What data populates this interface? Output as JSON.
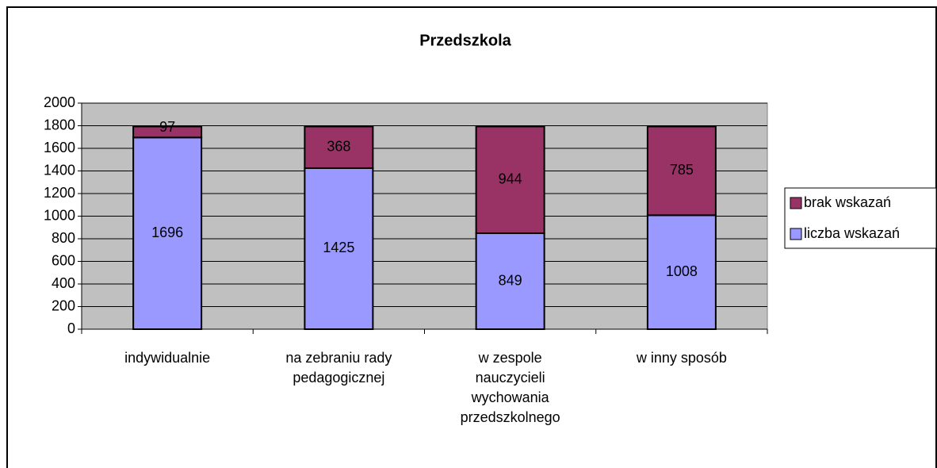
{
  "chart_data": {
    "type": "stacked_bar",
    "title": "Przedszkola",
    "categories": [
      [
        "indywidualnie"
      ],
      [
        "na zebraniu rady",
        "pedagogicznej"
      ],
      [
        "w zespole",
        "nauczycieli",
        "wychowania",
        "przedszkolnego"
      ],
      [
        "w inny sposób"
      ]
    ],
    "series": [
      {
        "name": "liczba wskazań",
        "color": "#9999ff",
        "values": [
          1696,
          1425,
          849,
          1008
        ]
      },
      {
        "name": "brak wskazań",
        "color": "#993366",
        "values": [
          97,
          368,
          944,
          785
        ]
      }
    ],
    "ylim": [
      0,
      2000
    ],
    "yticks": [
      0,
      200,
      400,
      600,
      800,
      1000,
      1200,
      1400,
      1600,
      1800,
      2000
    ],
    "grid": true,
    "legend": "right"
  }
}
